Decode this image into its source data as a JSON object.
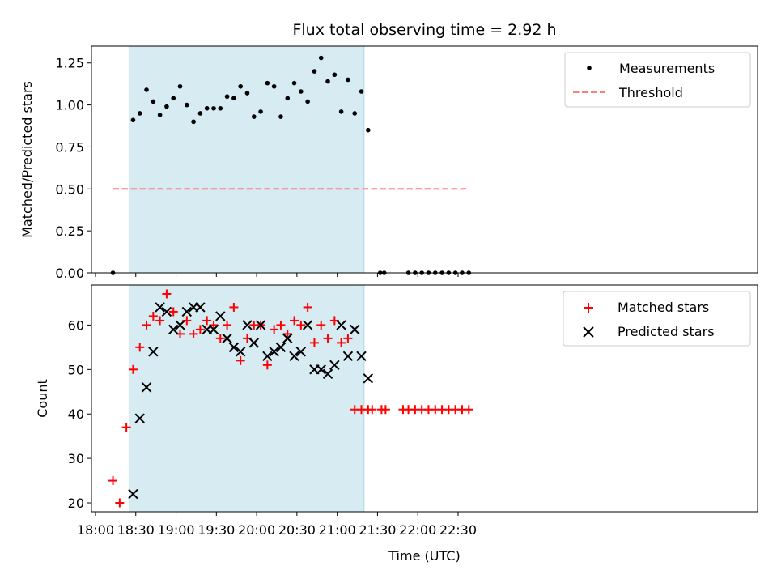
{
  "chart_data": [
    {
      "type": "scatter",
      "title": "Flux total observing time = 2.92 h",
      "xlabel": "",
      "ylabel": "Matched/Predicted stars",
      "xlim": [
        1077,
        1573
      ],
      "ylim": [
        0.0,
        1.35
      ],
      "yticks": [
        0.0,
        0.25,
        0.5,
        0.75,
        1.0,
        1.25
      ],
      "ytick_labels": [
        "0.00",
        "0.25",
        "0.50",
        "0.75",
        "1.00",
        "1.25"
      ],
      "shaded_span": [
        1105,
        1280
      ],
      "colors": {
        "shade": "#add8e6",
        "threshold": "#ff7f7f",
        "measurements": "#000000"
      },
      "legend_position": "top-right",
      "threshold": {
        "name": "Threshold",
        "value": 0.5,
        "x_range": [
          1093,
          1357
        ]
      },
      "series": [
        {
          "name": "Measurements",
          "x": [
            1093,
            1108,
            1113,
            1118,
            1123,
            1128,
            1133,
            1138,
            1143,
            1148,
            1153,
            1158,
            1163,
            1168,
            1173,
            1178,
            1183,
            1188,
            1193,
            1198,
            1203,
            1208,
            1213,
            1218,
            1223,
            1228,
            1233,
            1238,
            1243,
            1248,
            1253,
            1258,
            1263,
            1268,
            1273,
            1278,
            1283,
            1292,
            1295,
            1313,
            1318,
            1323,
            1328,
            1333,
            1338,
            1343,
            1348,
            1353,
            1358
          ],
          "y": [
            0.0,
            0.91,
            0.95,
            1.09,
            1.02,
            0.94,
            0.99,
            1.04,
            1.11,
            1.0,
            0.9,
            0.95,
            0.98,
            0.98,
            0.98,
            1.05,
            1.04,
            1.11,
            1.07,
            0.93,
            0.96,
            1.13,
            1.11,
            0.93,
            1.04,
            1.13,
            1.08,
            1.02,
            1.2,
            1.28,
            1.14,
            1.18,
            0.96,
            1.15,
            0.95,
            1.08,
            0.85,
            0.0,
            0.0,
            0.0,
            0.0,
            0.0,
            0.0,
            0.0,
            0.0,
            0.0,
            0.0,
            0.0,
            0.0
          ]
        }
      ]
    },
    {
      "type": "scatter",
      "title": "",
      "xlabel": "Time (UTC)",
      "ylabel": "Count",
      "xlim": [
        1077,
        1573
      ],
      "ylim": [
        18,
        69
      ],
      "yticks": [
        20,
        30,
        40,
        50,
        60
      ],
      "ytick_labels": [
        "20",
        "30",
        "40",
        "50",
        "60"
      ],
      "xticks": [
        1080,
        1110,
        1140,
        1170,
        1200,
        1230,
        1260,
        1290,
        1320,
        1350
      ],
      "xtick_labels": [
        "18:00",
        "18:30",
        "19:00",
        "19:30",
        "20:00",
        "20:30",
        "21:00",
        "21:30",
        "22:00",
        "22:30"
      ],
      "shaded_span": [
        1105,
        1280
      ],
      "colors": {
        "matched": "#ff0000",
        "predicted": "#000000"
      },
      "legend_position": "top-right",
      "series": [
        {
          "name": "Matched stars",
          "x": [
            1093,
            1098,
            1103,
            1108,
            1113,
            1118,
            1123,
            1128,
            1133,
            1138,
            1143,
            1148,
            1153,
            1158,
            1163,
            1168,
            1173,
            1178,
            1183,
            1188,
            1193,
            1198,
            1203,
            1208,
            1213,
            1218,
            1223,
            1228,
            1233,
            1238,
            1243,
            1248,
            1253,
            1258,
            1263,
            1268,
            1273,
            1278,
            1283,
            1286,
            1293,
            1296,
            1309,
            1313,
            1318,
            1323,
            1328,
            1333,
            1338,
            1343,
            1348,
            1353,
            1358
          ],
          "y": [
            25,
            20,
            37,
            50,
            55,
            60,
            62,
            61,
            67,
            63,
            58,
            61,
            58,
            59,
            61,
            60,
            57,
            60,
            64,
            52,
            57,
            60,
            60,
            51,
            59,
            60,
            58,
            61,
            60,
            64,
            56,
            60,
            57,
            61,
            56,
            57,
            41,
            41,
            41,
            41,
            41,
            41,
            41,
            41,
            41,
            41,
            41,
            41,
            41,
            41,
            41,
            41,
            41
          ]
        },
        {
          "name": "Predicted stars",
          "x": [
            1108,
            1113,
            1118,
            1123,
            1128,
            1133,
            1138,
            1143,
            1148,
            1153,
            1158,
            1163,
            1168,
            1173,
            1178,
            1183,
            1188,
            1193,
            1198,
            1203,
            1208,
            1213,
            1218,
            1223,
            1228,
            1233,
            1238,
            1243,
            1248,
            1253,
            1258,
            1263,
            1268,
            1273,
            1278,
            1283
          ],
          "y": [
            22,
            39,
            46,
            54,
            64,
            63,
            59,
            60,
            63,
            64,
            64,
            59,
            59,
            62,
            57,
            55,
            54,
            60,
            56,
            60,
            53,
            54,
            55,
            57,
            53,
            54,
            60,
            50,
            50,
            49,
            51,
            60,
            53,
            59,
            53,
            48
          ]
        }
      ]
    }
  ]
}
